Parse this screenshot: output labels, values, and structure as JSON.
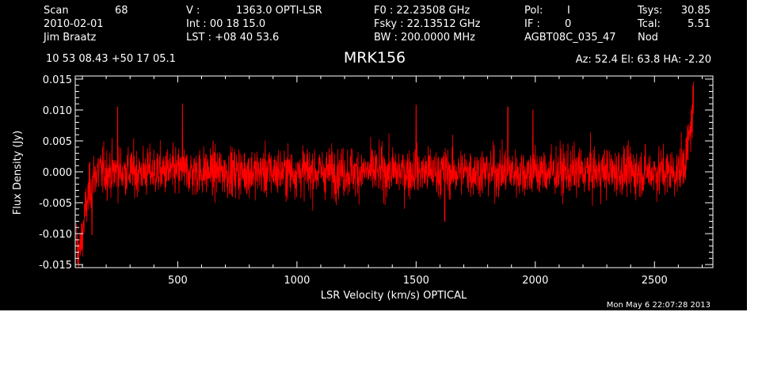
{
  "header": {
    "col1": [
      "Scan",
      "2010-02-01",
      "Jim Braatz"
    ],
    "scan_number": "68",
    "col2": [
      "V   :",
      "Int  :  00 18 15.0",
      "LST : +08 40 53.6"
    ],
    "velocity_value": "1363.0 OPTI-LSR",
    "col3": [
      "F0   :  22.23508 GHz",
      "Fsky :  22.13512 GHz",
      "BW   : 200.0000 MHz"
    ],
    "col4": [
      "Pol:",
      "IF :",
      "AGBT08C_035_47"
    ],
    "pol_value": "I",
    "if_value": "0",
    "col5": [
      "Tsys:",
      "Tcal:",
      "Nod"
    ],
    "tsys_value": "30.85",
    "tcal_value": "5.51",
    "coordinates": "10 53 08.43  +50 17 05.1",
    "pointing": "Az:  52.4   El:  63.8   HA: -2.20",
    "timestamp": "Mon May  6 22:07:28 2013"
  },
  "chart_data": {
    "type": "line",
    "title": "MRK156",
    "xlabel": "LSR Velocity (km/s) OPTICAL",
    "ylabel": "Flux Density (Jy)",
    "xlim": [
      70,
      2745
    ],
    "ylim": [
      -0.0155,
      0.0155
    ],
    "x_ticks": [
      500,
      1000,
      1500,
      2000,
      2500
    ],
    "x_tick_labels": [
      "500",
      "1000",
      "1500",
      "2000",
      "2500"
    ],
    "y_ticks": [
      -0.015,
      -0.01,
      -0.005,
      0.0,
      0.005,
      0.01,
      0.015
    ],
    "y_tick_labels": [
      "-0.015",
      "-0.010",
      "-0.005",
      "0.000",
      "0.005",
      "0.010",
      "0.015"
    ],
    "series_color": "#ff0000",
    "grid": false,
    "series": [
      {
        "x_start": 75,
        "x_end": 2665,
        "noise_rms": 0.0028,
        "start_dip": [
          [
            75,
            -0.011
          ],
          [
            90,
            -0.013
          ],
          [
            110,
            -0.007
          ],
          [
            135,
            -0.002
          ],
          [
            160,
            0.0
          ]
        ],
        "end_rise": [
          [
            2600,
            0.0
          ],
          [
            2630,
            0.002
          ],
          [
            2645,
            0.005
          ],
          [
            2658,
            0.009
          ],
          [
            2665,
            0.012
          ]
        ],
        "spikes": [
          [
            248,
            0.0105
          ],
          [
            520,
            0.011
          ],
          [
            1500,
            0.0108
          ],
          [
            1885,
            0.0105
          ],
          [
            1990,
            0.01
          ],
          [
            80,
            -0.0148
          ],
          [
            140,
            -0.0102
          ],
          [
            1620,
            -0.008
          ]
        ]
      }
    ]
  }
}
